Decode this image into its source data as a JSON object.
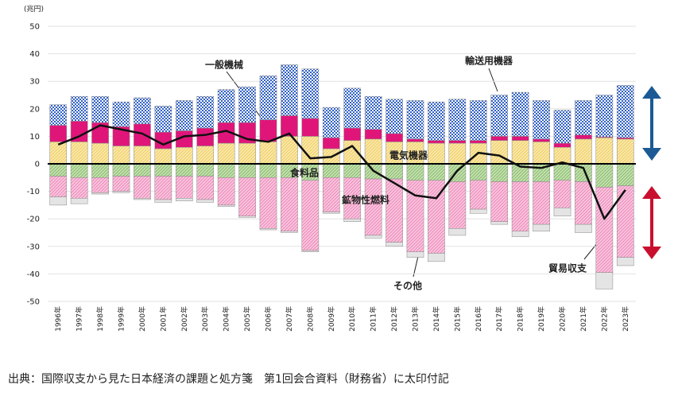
{
  "chart_data": {
    "type": "stacked_bar_line",
    "y_unit": "(兆円)",
    "source": "出典：国際収支から見た日本経済の課題と処方箋　第1回会合資料（財務省）に太印付記",
    "categories": [
      "1996年",
      "1997年",
      "1998年",
      "1999年",
      "2000年",
      "2001年",
      "2002年",
      "2003年",
      "2004年",
      "2005年",
      "2006年",
      "2007年",
      "2008年",
      "2009年",
      "2010年",
      "2011年",
      "2012年",
      "2013年",
      "2014年",
      "2015年",
      "2016年",
      "2017年",
      "2018年",
      "2019年",
      "2020年",
      "2021年",
      "2022年",
      "2023年"
    ],
    "series": [
      {
        "name": "一般機械",
        "color": "#f2d060",
        "pattern": "hatch",
        "values": [
          8,
          8,
          7.5,
          6.5,
          6.5,
          5.5,
          6,
          6.5,
          7.5,
          7.5,
          8,
          10,
          10,
          5.5,
          8.5,
          9,
          8,
          8,
          7.5,
          7.5,
          7.5,
          8.5,
          8.5,
          8,
          6,
          9,
          9.5,
          9
        ]
      },
      {
        "name": "電気機器",
        "color": "#e0157a",
        "pattern": "solid",
        "values": [
          6,
          7.5,
          7.5,
          7,
          8,
          6,
          6,
          6.5,
          7.5,
          7.5,
          8,
          7.5,
          6.5,
          4,
          4.5,
          3.5,
          3,
          1,
          1,
          1,
          1,
          1.5,
          1.5,
          1,
          1.5,
          1.5,
          0.3,
          0.5
        ]
      },
      {
        "name": "輸送用機器",
        "color": "#3060c8",
        "pattern": "check",
        "values": [
          7.5,
          9,
          9.5,
          9,
          9.5,
          9.5,
          11,
          11.5,
          12,
          13,
          16,
          18.5,
          18,
          11,
          14.5,
          12,
          12.5,
          14,
          14,
          15,
          14.5,
          15,
          16,
          14,
          12,
          12.5,
          15.2,
          19
        ]
      },
      {
        "name": "食料品",
        "color": "#8cc06a",
        "pattern": "hatch",
        "values": [
          -4.5,
          -5,
          -5,
          -4.5,
          -4.5,
          -4.5,
          -4.5,
          -4.5,
          -5,
          -5,
          -5,
          -5,
          -6,
          -5,
          -5,
          -5.5,
          -5.5,
          -6,
          -6,
          -6.5,
          -6,
          -6.5,
          -6.5,
          -6.5,
          -6,
          -6.5,
          -8.5,
          -8
        ]
      },
      {
        "name": "鉱物性燃料",
        "color": "#f08cbc",
        "pattern": "hatch",
        "values": [
          -7.5,
          -7.5,
          -5.5,
          -5.5,
          -8,
          -8.5,
          -8,
          -8.5,
          -10,
          -14,
          -18.5,
          -19.5,
          -25.5,
          -12.5,
          -15,
          -20.5,
          -23,
          -26,
          -26.5,
          -17,
          -10.5,
          -14.5,
          -18,
          -15.5,
          -10,
          -15.5,
          -31,
          -26
        ]
      },
      {
        "name": "その他",
        "color": "#e4e4e4",
        "pattern": "solid",
        "values": [
          -3,
          -2,
          -0.5,
          -0.5,
          -0.5,
          -1,
          -1,
          -1,
          -0.5,
          -0.5,
          -0.5,
          -0.5,
          -0.5,
          -0.5,
          -1,
          -1,
          -1.5,
          -2,
          -3,
          -2.5,
          -1.5,
          -1,
          -2,
          -2.5,
          -3,
          -3,
          -6,
          -3
        ]
      }
    ],
    "line": {
      "name": "貿易収支",
      "color": "#111111",
      "values": [
        7,
        10,
        14,
        12.5,
        11,
        7,
        10,
        10.5,
        12,
        9,
        8,
        11,
        2,
        2.5,
        6.5,
        -2.5,
        -7,
        -11.5,
        -12.5,
        -2.5,
        4,
        3,
        -1,
        -1.5,
        0.5,
        -1.5,
        -20,
        -9.5
      ]
    },
    "ylim": [
      -50,
      50
    ],
    "yticks": [
      -50,
      -40,
      -30,
      -20,
      -10,
      0,
      10,
      20,
      30,
      40,
      50
    ],
    "grid": true
  }
}
